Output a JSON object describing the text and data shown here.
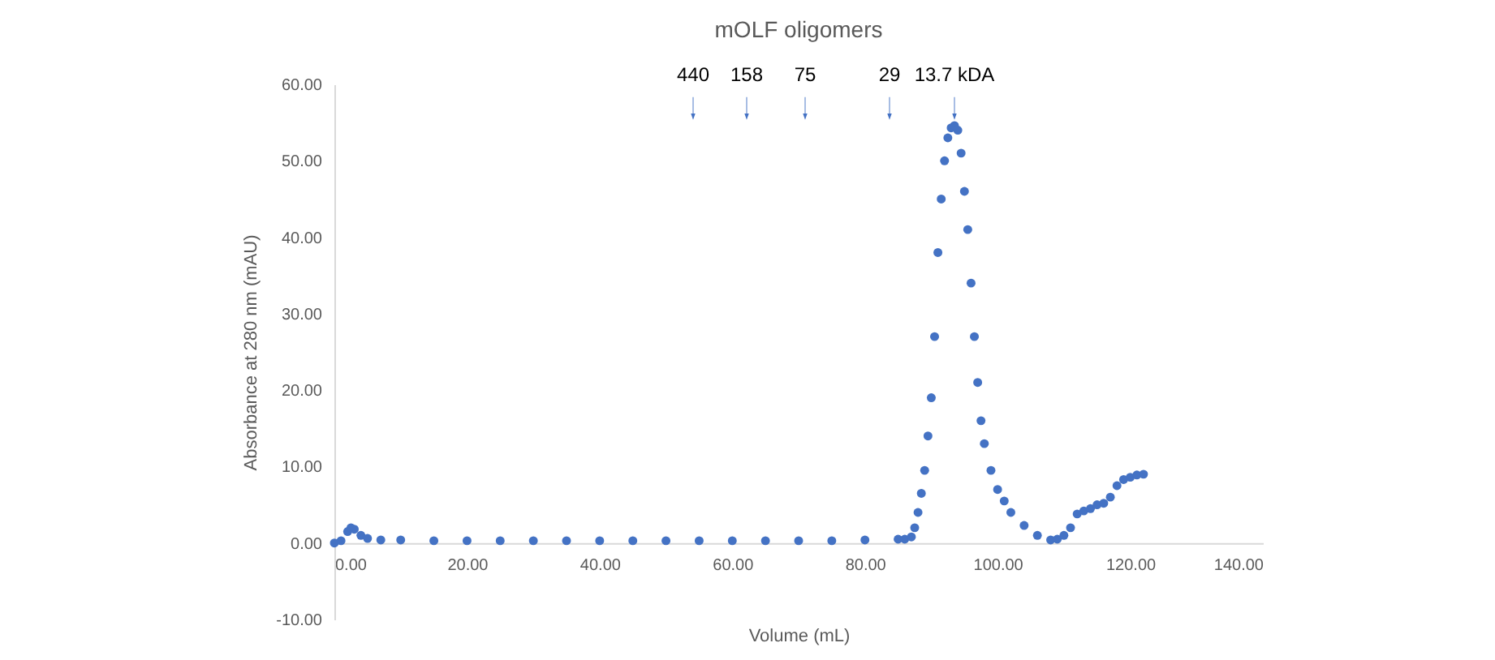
{
  "chart_data": {
    "type": "scatter",
    "title": "mOLF oligomers",
    "xlabel": "Volume (mL)",
    "ylabel": "Absorbance at 280 nm (mAU)",
    "annotations": [
      "440",
      "158",
      "75",
      "29",
      "13.7 kDA"
    ],
    "xlim": [
      0,
      140
    ],
    "ylim": [
      -10,
      60
    ],
    "xticks": [
      {
        "value": 0,
        "label": "0.00"
      },
      {
        "value": 20,
        "label": "20.00"
      },
      {
        "value": 40,
        "label": "40.00"
      },
      {
        "value": 60,
        "label": "60.00"
      },
      {
        "value": 80,
        "label": "80.00"
      },
      {
        "value": 100,
        "label": "100.00"
      },
      {
        "value": 120,
        "label": "120.00"
      },
      {
        "value": 140,
        "label": "140.00"
      }
    ],
    "yticks": [
      {
        "value": -10,
        "label": "-10.00"
      },
      {
        "value": 0,
        "label": "0.00"
      },
      {
        "value": 10,
        "label": "10.00"
      },
      {
        "value": 20,
        "label": "20.00"
      },
      {
        "value": 30,
        "label": "30.00"
      },
      {
        "value": 40,
        "label": "40.00"
      },
      {
        "value": 50,
        "label": "50.00"
      },
      {
        "value": 60,
        "label": "60.00"
      }
    ],
    "grid": false,
    "marker": "circle",
    "x": [
      0,
      1,
      2,
      2.5,
      3,
      4,
      5,
      7,
      10,
      15,
      20,
      25,
      30,
      35,
      40,
      45,
      50,
      55,
      60,
      65,
      70,
      75,
      80,
      85,
      86,
      87,
      87.5,
      88,
      88.5,
      89,
      89.5,
      90,
      90.5,
      91,
      91.5,
      92,
      92.5,
      93,
      93.5,
      94,
      94.5,
      95,
      95.5,
      96,
      96.5,
      97,
      97.5,
      98,
      99,
      100,
      101,
      102,
      104,
      106,
      108,
      109,
      110,
      111,
      112,
      113,
      114,
      115,
      116,
      117,
      118,
      119,
      120,
      121,
      122
    ],
    "series": [
      {
        "color": "#4472c4",
        "values": [
          0,
          0.3,
          1.5,
          2,
          1.8,
          1,
          0.6,
          0.4,
          0.4,
          0.3,
          0.3,
          0.3,
          0.3,
          0.3,
          0.3,
          0.3,
          0.3,
          0.3,
          0.3,
          0.3,
          0.3,
          0.3,
          0.4,
          0.5,
          0.5,
          0.8,
          2,
          4,
          6.5,
          9.5,
          14,
          19,
          27,
          38,
          45,
          50,
          53,
          54.3,
          54.6,
          54,
          51,
          46,
          41,
          34,
          27,
          21,
          16,
          13,
          9.5,
          7,
          5.5,
          4,
          2.3,
          1,
          0.4,
          0.5,
          1,
          2,
          3.8,
          4.2,
          4.5,
          5,
          5.2,
          6,
          7.5,
          8.3,
          8.6,
          8.9,
          9
        ]
      }
    ]
  }
}
